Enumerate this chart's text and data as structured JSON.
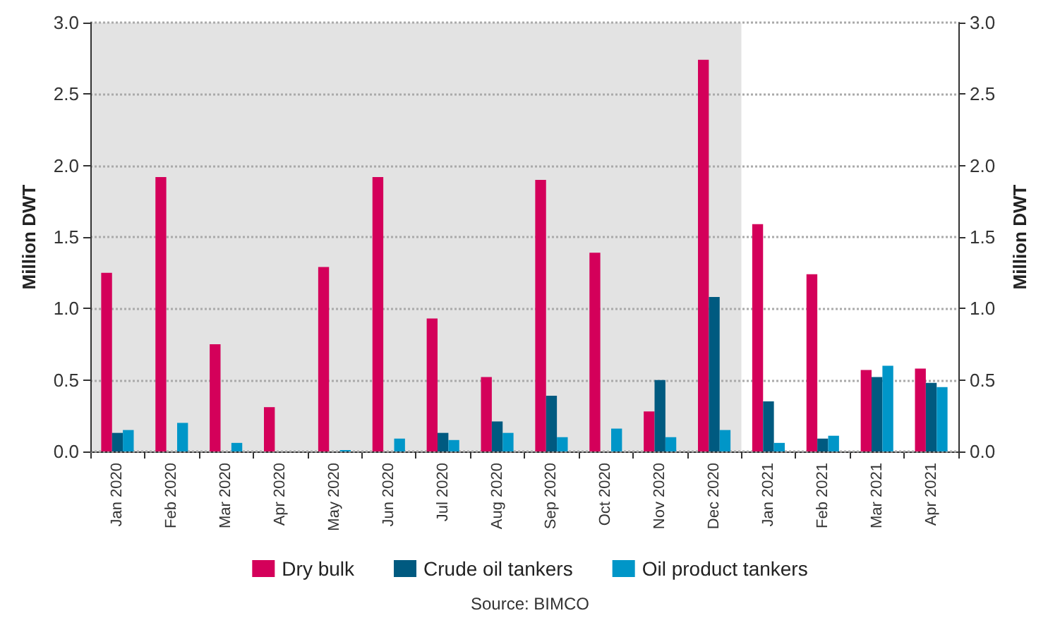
{
  "chart_data": {
    "type": "bar",
    "ylabel": "Million DWT",
    "y2label": "Million DWT",
    "categories": [
      "Jan 2020",
      "Feb 2020",
      "Mar 2020",
      "Apr 2020",
      "May 2020",
      "Jun 2020",
      "Jul 2020",
      "Aug 2020",
      "Sep 2020",
      "Oct 2020",
      "Nov 2020",
      "Dec 2020",
      "Jan 2021",
      "Feb 2021",
      "Mar 2021",
      "Apr 2021"
    ],
    "series": [
      {
        "name": "Dry bulk",
        "color": "#d4005a",
        "values": [
          1.25,
          1.92,
          0.75,
          0.31,
          1.29,
          1.92,
          0.93,
          0.52,
          1.9,
          1.39,
          0.28,
          2.74,
          1.59,
          1.24,
          0.57,
          0.58
        ]
      },
      {
        "name": "Crude oil tankers",
        "color": "#005a80",
        "values": [
          0.13,
          0,
          0,
          0,
          0,
          0,
          0.13,
          0.21,
          0.39,
          0,
          0.5,
          1.08,
          0.35,
          0.09,
          0.52,
          0.48
        ]
      },
      {
        "name": "Oil product tankers",
        "color": "#0096c8",
        "values": [
          0.15,
          0.2,
          0.06,
          0,
          0.01,
          0.09,
          0.08,
          0.13,
          0.1,
          0.16,
          0.1,
          0.15,
          0.06,
          0.11,
          0.6,
          0.45
        ]
      }
    ],
    "ylim": [
      0,
      3
    ],
    "yticks": [
      {
        "value": 0,
        "label": "0.0"
      },
      0.5,
      {
        "value": 1,
        "label": "1.0"
      },
      1.5,
      {
        "value": 2,
        "label": "2.0"
      },
      2.5,
      {
        "value": 3,
        "label": "3.0"
      }
    ],
    "y2lim": [
      0,
      3
    ],
    "y2ticks": [
      {
        "value": 0,
        "label": "0.0"
      },
      0.5,
      {
        "value": 1,
        "label": "1.0"
      },
      1.5,
      {
        "value": 2,
        "label": "2.0"
      },
      2.5,
      {
        "value": 3,
        "label": "3.0"
      }
    ],
    "bands": [
      {
        "axis": "x",
        "from": "Jan 2020",
        "to": "Dec 2020",
        "color": "#e3e3e3"
      }
    ],
    "grid": "y",
    "legend": "bottom",
    "annotations": [
      "Source: BIMCO"
    ]
  }
}
